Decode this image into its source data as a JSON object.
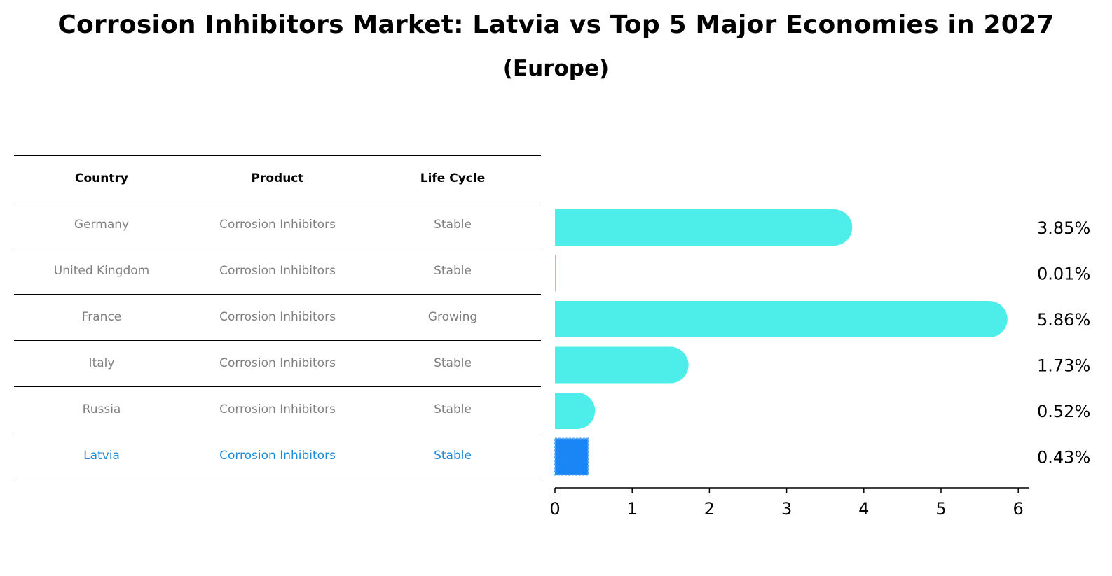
{
  "title": "Corrosion Inhibitors Market: Latvia vs Top 5 Major Economies in 2027",
  "subtitle": "(Europe)",
  "table": {
    "headers": [
      "Country",
      "Product",
      "Life Cycle"
    ],
    "rows": [
      [
        "Germany",
        "Corrosion Inhibitors",
        "Stable"
      ],
      [
        "United Kingdom",
        "Corrosion Inhibitors",
        "Stable"
      ],
      [
        "France",
        "Corrosion Inhibitors",
        "Growing"
      ],
      [
        "Italy",
        "Corrosion Inhibitors",
        "Stable"
      ],
      [
        "Russia",
        "Corrosion Inhibitors",
        "Stable"
      ],
      [
        "Latvia",
        "Corrosion Inhibitors",
        "Stable"
      ]
    ],
    "highlight_row": 5
  },
  "colors": {
    "bar": "#4deeea",
    "highlight_bar": "#1a86f5",
    "highlight_text": "#1f8ad6",
    "muted_text": "#808080"
  },
  "chart_data": {
    "type": "bar",
    "orientation": "horizontal",
    "categories": [
      "Germany",
      "United Kingdom",
      "France",
      "Italy",
      "Russia",
      "Latvia"
    ],
    "values": [
      3.85,
      0.01,
      5.86,
      1.73,
      0.52,
      0.43
    ],
    "value_labels": [
      "3.85%",
      "0.01%",
      "5.86%",
      "1.73%",
      "0.52%",
      "0.43%"
    ],
    "xlim": [
      0,
      6
    ],
    "xticks": [
      0,
      1,
      2,
      3,
      4,
      5,
      6
    ],
    "highlight_category": "Latvia",
    "grid": false,
    "legend": "none"
  }
}
